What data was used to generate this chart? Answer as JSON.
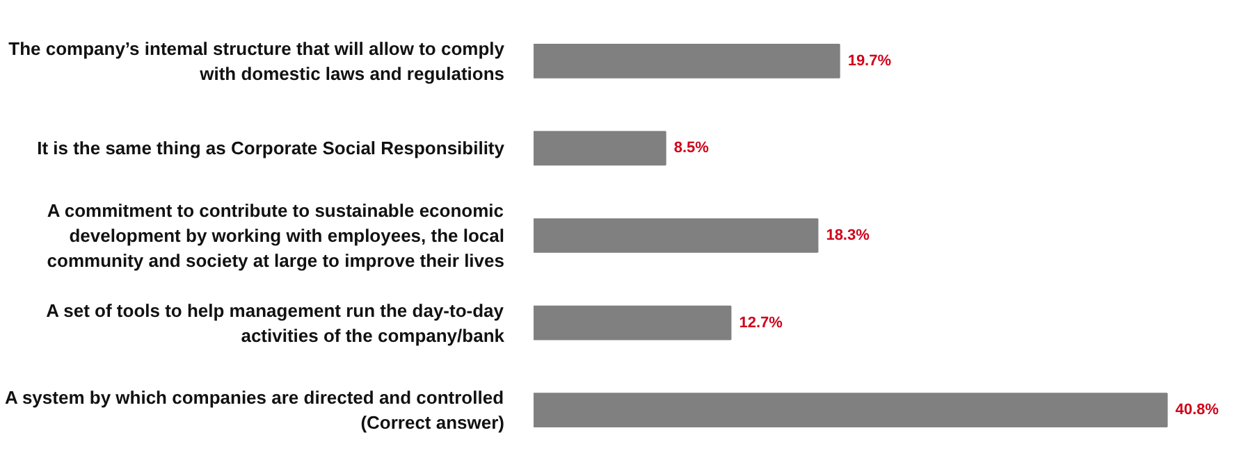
{
  "chart_data": {
    "type": "bar",
    "orientation": "horizontal",
    "categories": [
      "The company’s intemal structure that will allow to comply\nwith domestic laws and regulations",
      "It is the same thing as Corporate Social Responsibility",
      "A commitment to contribute to sustainable economic\ndevelopment by working with employees, the local\ncommunity and society at large to improve their lives",
      "A set of tools to help management run the day-to-day\nactivities of the company/bank",
      "A system by which companies are directed and controlled\n(Correct answer)"
    ],
    "values": [
      19.7,
      8.5,
      18.3,
      12.7,
      40.8
    ],
    "color": "#808080",
    "value_labels": [
      "19.7%",
      "8.5%",
      "18.3%",
      "12.7%",
      "40.8%"
    ],
    "grid": false
  }
}
